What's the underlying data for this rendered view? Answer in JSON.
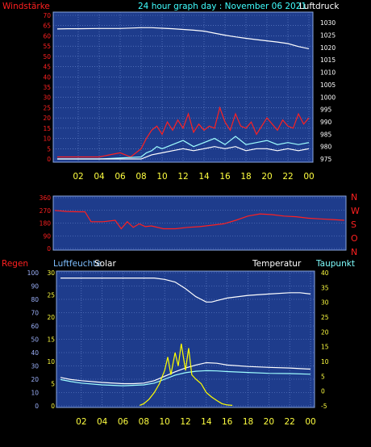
{
  "header": {
    "left_label": "Windstärke",
    "title": "24 hour graph day : November 06 2021",
    "right_label": "Luftdruck"
  },
  "colors": {
    "panel_bg": "#1e3c8c",
    "grid": "#6e8cd2",
    "red": "#ff2020",
    "white": "#ffffff",
    "cyan": "#a0ffff",
    "yellow": "#ffff00",
    "hour_labels": "#ffff40",
    "left_ticks": "#ff2020",
    "right_ticks": "#ffffff"
  },
  "x_ticks": [
    "02",
    "04",
    "06",
    "08",
    "10",
    "12",
    "14",
    "16",
    "18",
    "20",
    "22",
    "00"
  ],
  "chart_data": [
    {
      "type": "line",
      "x_unit": "hour",
      "left_axis": {
        "label": "Windstärke",
        "range": [
          0,
          70
        ],
        "ticks": [
          "0",
          "5",
          "10",
          "15",
          "20",
          "25",
          "30",
          "35",
          "40",
          "45",
          "50",
          "55",
          "60",
          "65",
          "70"
        ]
      },
      "right_axis": {
        "label": "Luftdruck",
        "range": [
          975,
          1033
        ],
        "ticks": [
          "975",
          "980",
          "985",
          "990",
          "995",
          "1000",
          "1005",
          "1010",
          "1015",
          "1020",
          "1025",
          "1030"
        ]
      },
      "series": [
        {
          "name": "Luftdruck",
          "axis": "right",
          "color": "white",
          "x": [
            0,
            1,
            2,
            4,
            6,
            8,
            9,
            10,
            11,
            12,
            13,
            14,
            15,
            16,
            17,
            18,
            19,
            20,
            21,
            22,
            23,
            24
          ],
          "y": [
            1027.5,
            1027.6,
            1027.6,
            1027.7,
            1027.7,
            1028.0,
            1028.0,
            1027.8,
            1027.6,
            1027.3,
            1027.0,
            1026.6,
            1025.8,
            1025.0,
            1024.3,
            1023.7,
            1023.2,
            1022.7,
            1022.2,
            1021.6,
            1020.4,
            1019.5
          ]
        },
        {
          "name": "Windböen",
          "axis": "left",
          "color": "red",
          "x": [
            0,
            2,
            4,
            5,
            6,
            7,
            8,
            8.5,
            9,
            9.5,
            10,
            10.5,
            11,
            11.5,
            12,
            12.5,
            13,
            13.5,
            14,
            14.5,
            15,
            15.5,
            16,
            16.5,
            17,
            17.5,
            18,
            18.5,
            19,
            19.5,
            20,
            20.5,
            21,
            21.5,
            22,
            22.5,
            23,
            23.5,
            24
          ],
          "y": [
            1,
            1,
            1,
            2,
            3,
            1,
            5,
            10,
            14,
            16,
            12,
            18,
            14,
            19,
            15,
            22,
            13,
            17,
            14,
            16,
            15,
            25,
            18,
            14,
            22,
            16,
            15,
            18,
            12,
            16,
            20,
            17,
            14,
            19,
            16,
            15,
            22,
            17,
            20
          ]
        },
        {
          "name": "Windstärke",
          "axis": "left",
          "color": "cyan",
          "x": [
            0,
            4,
            8,
            8.5,
            9,
            9.5,
            10,
            11,
            12,
            13,
            14,
            15,
            16,
            17,
            18,
            19,
            20,
            21,
            22,
            23,
            24
          ],
          "y": [
            0,
            0,
            1,
            3,
            4,
            6,
            5,
            7,
            9,
            6,
            8,
            10,
            7,
            11,
            7,
            8,
            9,
            7,
            8,
            7,
            8
          ]
        },
        {
          "name": "Wind-Mittel",
          "axis": "left",
          "color": "white",
          "x": [
            0,
            8,
            9,
            10,
            11,
            12,
            13,
            14,
            15,
            16,
            17,
            18,
            19,
            20,
            21,
            22,
            23,
            24
          ],
          "y": [
            0,
            0,
            2,
            3,
            4,
            5,
            4,
            5,
            6,
            5,
            6,
            4,
            5,
            5,
            4,
            5,
            4,
            5
          ]
        }
      ]
    },
    {
      "type": "line",
      "x_unit": "hour",
      "left_axis": {
        "range": [
          0,
          360
        ],
        "ticks": [
          "0",
          "90",
          "180",
          "270",
          "360"
        ]
      },
      "right_axis": {
        "ticks": [
          "N",
          "W",
          "S",
          "O",
          "N"
        ]
      },
      "series": [
        {
          "name": "Windrichtung",
          "color": "red",
          "x": [
            0,
            1,
            2,
            2.5,
            3,
            4,
            5,
            5.5,
            6,
            6.5,
            7,
            7.5,
            8,
            9,
            10,
            11,
            12,
            13,
            14,
            15,
            16,
            17,
            18,
            19,
            20,
            21,
            22,
            23,
            24
          ],
          "y": [
            270,
            262,
            260,
            260,
            190,
            190,
            200,
            140,
            190,
            150,
            175,
            155,
            160,
            140,
            140,
            150,
            155,
            165,
            175,
            200,
            230,
            245,
            240,
            230,
            225,
            215,
            210,
            205,
            200
          ]
        }
      ]
    },
    {
      "type": "line",
      "x_unit": "hour",
      "axes": [
        {
          "label": "Regen",
          "range": [
            0,
            100
          ],
          "ticks": [
            "0",
            "10",
            "20",
            "30",
            "40",
            "50",
            "60",
            "70",
            "80",
            "90",
            "100"
          ]
        },
        {
          "label": "Luftfeuchte",
          "range": [
            0,
            30
          ],
          "ticks": [
            "0",
            "5",
            "10",
            "15",
            "20",
            "25",
            "30"
          ]
        },
        {
          "label": "Solar"
        },
        {
          "label": "Temperatur"
        },
        {
          "label": "Taupunkt",
          "range": [
            -5,
            40
          ],
          "ticks": [
            "-5",
            "0",
            "5",
            "10",
            "15",
            "20",
            "25",
            "30",
            "35",
            "40"
          ]
        }
      ],
      "series": [
        {
          "name": "Luftfeuchte",
          "color": "white",
          "x": [
            0,
            1,
            2,
            4,
            6,
            8,
            9,
            10,
            11,
            12,
            12.5,
            13,
            13.5,
            14,
            14.5,
            15,
            16,
            18,
            20,
            22,
            23,
            24
          ],
          "y": [
            96,
            96,
            96,
            96,
            96,
            96,
            96,
            95,
            93,
            88,
            85,
            82,
            80,
            78,
            78,
            79,
            81,
            83,
            84,
            85,
            85,
            84
          ]
        },
        {
          "name": "Temperatur",
          "color": "white",
          "x": [
            0,
            1,
            2,
            4,
            6,
            7,
            8,
            9,
            10,
            11,
            12,
            13,
            14,
            15,
            16,
            18,
            20,
            22,
            24
          ],
          "y": [
            4.6,
            3.9,
            3.5,
            2.9,
            2.5,
            2.5,
            2.7,
            3.5,
            5.0,
            6.5,
            7.8,
            8.8,
            9.6,
            9.4,
            8.8,
            8.3,
            8.0,
            7.8,
            7.4
          ]
        },
        {
          "name": "Taupunkt",
          "color": "cyan",
          "x": [
            0,
            1,
            2,
            4,
            6,
            8,
            9,
            10,
            11,
            12,
            13,
            14,
            15,
            16,
            18,
            20,
            22,
            24
          ],
          "y": [
            3.9,
            3.2,
            2.7,
            2.1,
            1.8,
            2.1,
            2.7,
            4.0,
            5.4,
            6.2,
            6.7,
            6.9,
            6.8,
            6.6,
            6.3,
            6.0,
            5.9,
            5.7
          ]
        },
        {
          "name": "Solar",
          "color": "yellow",
          "x": [
            7.6,
            8.0,
            8.5,
            9.0,
            9.5,
            10.0,
            10.3,
            10.6,
            11.0,
            11.3,
            11.6,
            12.0,
            12.3,
            12.6,
            13.0,
            13.5,
            14.0,
            14.5,
            15.0,
            15.5,
            16.0,
            16.5
          ],
          "y": [
            0.1,
            0.5,
            1.5,
            3,
            5,
            8,
            11,
            7,
            12,
            9,
            14,
            8,
            13,
            7,
            6,
            5,
            3,
            2,
            1.2,
            0.5,
            0.2,
            0.1
          ]
        }
      ]
    }
  ],
  "panel3_labels": {
    "regen": "Regen",
    "luftfeuchte": "Luftfeuchte",
    "solar": "Solar",
    "temperatur": "Temperatur",
    "taupunkt": "Taupunkt"
  }
}
